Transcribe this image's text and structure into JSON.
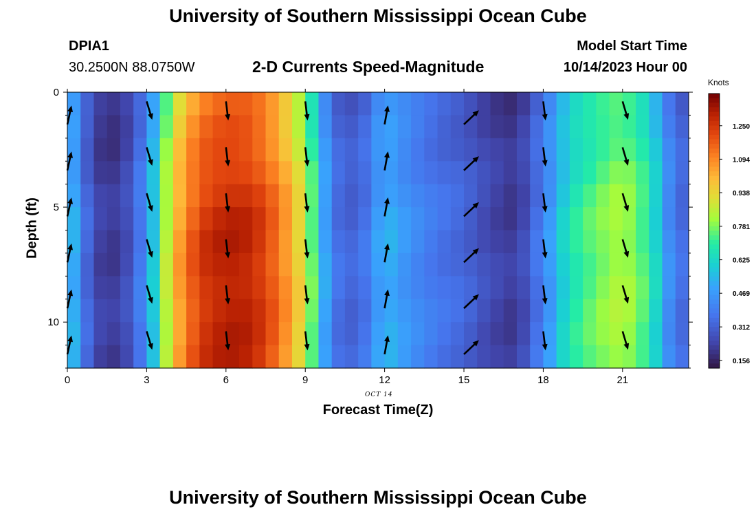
{
  "header": {
    "title": "University of Southern Mississippi Ocean Cube",
    "station": "DPIA1",
    "coords": "30.2500N  88.0750W",
    "subtitle": "2-D Currents Speed-Magnitude",
    "model_label": "Model Start Time",
    "model_time": "10/14/2023 Hour 00",
    "date_label": "OCT 14",
    "footer_title": "University of Southern Mississippi Ocean Cube"
  },
  "chart_data": {
    "type": "heatmap",
    "title": "2-D Currents Speed-Magnitude",
    "xlabel": "Forecast Time(Z)",
    "ylabel": "Depth (ft)",
    "xlim": [
      0,
      23.5
    ],
    "ylim": [
      0,
      12
    ],
    "x_ticks": [
      0,
      3,
      6,
      9,
      12,
      15,
      18,
      21
    ],
    "y_ticks": [
      0,
      5,
      10
    ],
    "y_inverted": true,
    "colorbar": {
      "label": "Knots",
      "min": 0.12,
      "max": 1.4,
      "ticks": [
        "1.250",
        "1.094",
        "0.938",
        "0.781",
        "0.625",
        "0.469",
        "0.312",
        "0.156"
      ],
      "tick_values": [
        1.25,
        1.094,
        0.938,
        0.781,
        0.625,
        0.469,
        0.312,
        0.156
      ]
    },
    "hours": [
      0,
      1,
      2,
      3,
      4,
      5,
      6,
      7,
      8,
      9,
      10,
      11,
      12,
      13,
      14,
      15,
      16,
      17,
      18,
      19,
      20,
      21,
      22,
      23
    ],
    "depths": [
      0,
      1,
      2,
      3,
      4,
      5,
      6,
      7,
      8,
      9,
      10,
      11,
      12
    ],
    "speed_profile_knots": [
      0.62,
      0.25,
      0.22,
      0.45,
      1.0,
      1.25,
      1.32,
      1.3,
      1.15,
      0.9,
      0.38,
      0.32,
      0.55,
      0.45,
      0.38,
      0.34,
      0.26,
      0.22,
      0.42,
      0.68,
      0.78,
      0.85,
      0.72,
      0.36
    ],
    "arrows": [
      {
        "x": 0,
        "dir": "north-northeast",
        "depths": [
          1.4,
          3.4,
          5.4,
          7.4,
          9.4,
          11.4
        ]
      },
      {
        "x": 3,
        "dir": "south-southeast",
        "depths": [
          0.4,
          2.4,
          4.4,
          6.4,
          8.4,
          10.4
        ]
      },
      {
        "x": 6,
        "dir": "south",
        "depths": [
          0.4,
          2.4,
          4.4,
          6.4,
          8.4,
          10.4
        ]
      },
      {
        "x": 9,
        "dir": "south",
        "depths": [
          0.4,
          2.4,
          4.4,
          6.4,
          8.4,
          10.4
        ]
      },
      {
        "x": 12,
        "dir": "north",
        "depths": [
          1.4,
          3.4,
          5.4,
          7.4,
          9.4,
          11.4
        ]
      },
      {
        "x": 15,
        "dir": "northeast",
        "depths": [
          1.4,
          3.4,
          5.4,
          7.4,
          9.4,
          11.4
        ]
      },
      {
        "x": 18,
        "dir": "south",
        "depths": [
          0.4,
          2.4,
          4.4,
          6.4,
          8.4,
          10.4
        ]
      },
      {
        "x": 21,
        "dir": "south-southeast",
        "depths": [
          0.4,
          2.4,
          4.4,
          6.4,
          8.4,
          10.4
        ]
      }
    ],
    "colors": {
      "low": "#30123b",
      "mid": "#a4fc3c",
      "high": "#7a0403",
      "arrow": "#000000"
    }
  }
}
